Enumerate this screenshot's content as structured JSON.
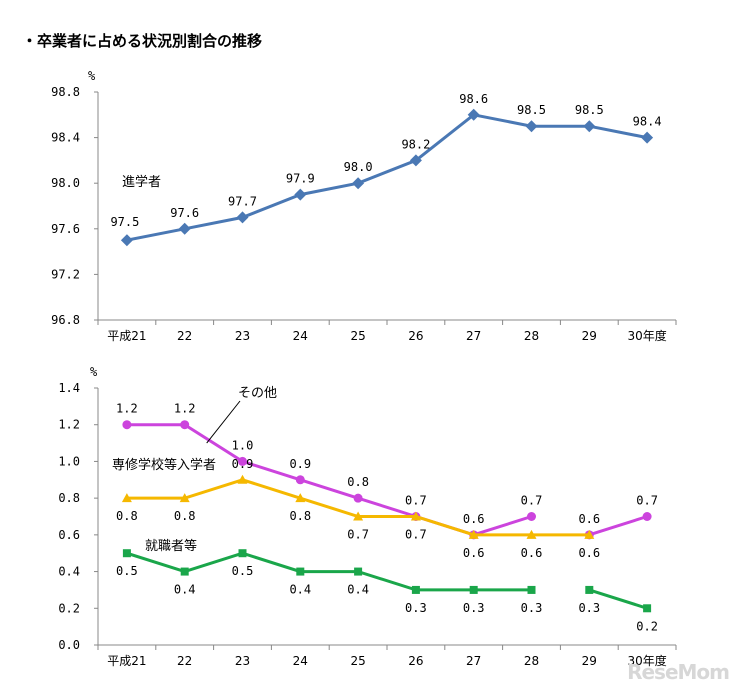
{
  "page_title": "・卒業者に占める状況別割合の推移",
  "watermark": "ReseMom",
  "chart_data": [
    {
      "type": "line",
      "unit_label": "%",
      "categories": [
        "平成21",
        "22",
        "23",
        "24",
        "25",
        "26",
        "27",
        "28",
        "29",
        "30年度"
      ],
      "ylim": [
        96.8,
        98.8
      ],
      "yticks": [
        "96.8",
        "97.2",
        "97.6",
        "98.0",
        "98.4",
        "98.8"
      ],
      "grid": false,
      "series": [
        {
          "name": "進学者",
          "color": "#4a78b4",
          "marker": "diamond",
          "values": [
            97.5,
            97.6,
            97.7,
            97.9,
            98.0,
            98.2,
            98.6,
            98.5,
            98.5,
            98.4
          ],
          "labels": [
            "97.5",
            "97.6",
            "97.7",
            "97.9",
            "98.0",
            "98.2",
            "98.6",
            "98.5",
            "98.5",
            "98.4"
          ]
        }
      ]
    },
    {
      "type": "line",
      "unit_label": "%",
      "categories": [
        "平成21",
        "22",
        "23",
        "24",
        "25",
        "26",
        "27",
        "28",
        "29",
        "30年度"
      ],
      "ylim": [
        0.0,
        1.4
      ],
      "yticks": [
        "0.0",
        "0.2",
        "0.4",
        "0.6",
        "0.8",
        "1.0",
        "1.2",
        "1.4"
      ],
      "grid": false,
      "series": [
        {
          "name": "その他",
          "color": "#cc44dd",
          "marker": "circle",
          "values": [
            1.2,
            1.2,
            1.0,
            0.9,
            0.8,
            0.7,
            0.6,
            0.7,
            0.6,
            0.7
          ],
          "labels": [
            "1.2",
            "1.2",
            "1.0",
            "0.9",
            "0.8",
            "0.7",
            "0.6",
            "0.7",
            "0.6",
            "0.7"
          ],
          "segments": [
            [
              0,
              7
            ],
            [
              8,
              9
            ]
          ]
        },
        {
          "name": "専修学校等入学者",
          "color": "#f5b800",
          "marker": "triangle",
          "values": [
            0.8,
            0.8,
            0.9,
            0.8,
            0.7,
            0.7,
            0.6,
            0.6,
            0.6,
            null
          ],
          "labels": [
            "0.8",
            "0.8",
            "0.9",
            "0.8",
            "0.7",
            "0.7",
            "0.6",
            "0.6",
            "0.6",
            ""
          ],
          "segments": [
            [
              0,
              8
            ]
          ]
        },
        {
          "name": "就職者等",
          "color": "#1aa64a",
          "marker": "square",
          "values": [
            0.5,
            0.4,
            0.5,
            0.4,
            0.4,
            0.3,
            0.3,
            0.3,
            0.3,
            0.2
          ],
          "labels": [
            "0.5",
            "0.4",
            "0.5",
            "0.4",
            "0.4",
            "0.3",
            "0.3",
            "0.3",
            "0.3",
            "0.2"
          ],
          "segments": [
            [
              0,
              7
            ],
            [
              8,
              9
            ]
          ]
        }
      ]
    }
  ]
}
